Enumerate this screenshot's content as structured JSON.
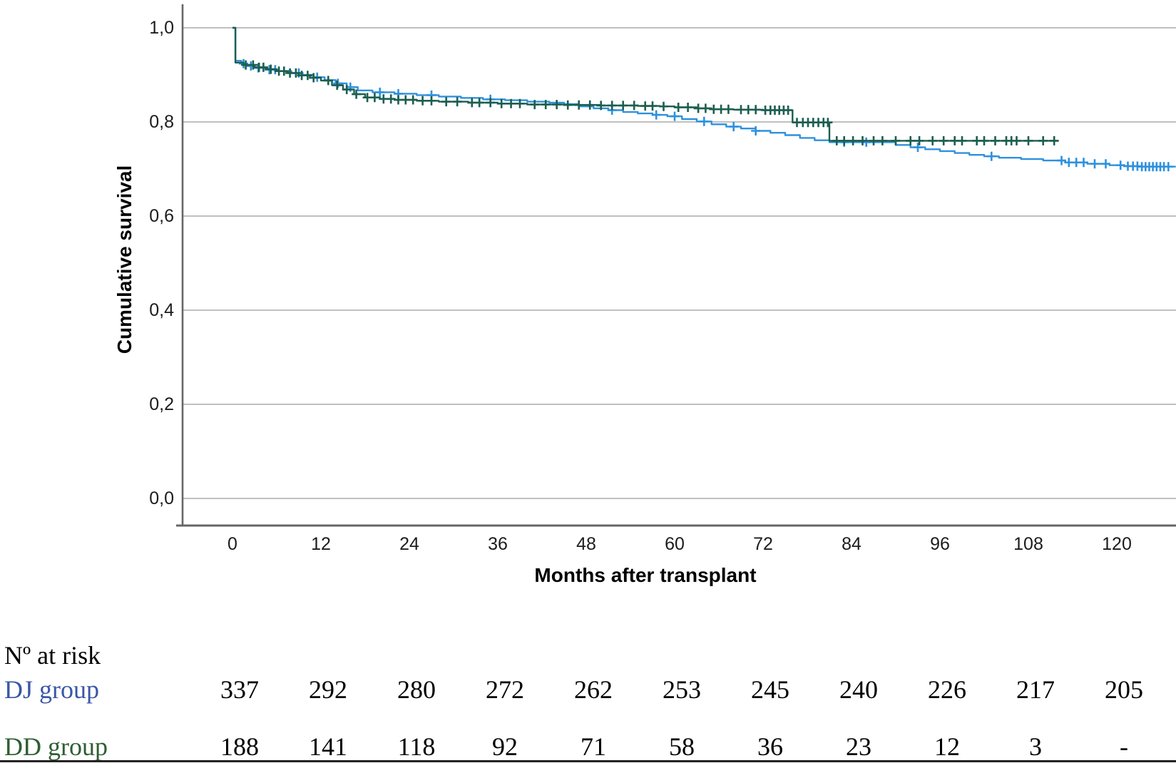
{
  "chart_data": {
    "type": "line",
    "subtype": "kaplan_meier_step_survival",
    "title": "",
    "xlabel": "Months after transplant",
    "ylabel": "Cumulative survival",
    "grid": "horizontal",
    "legend_position": "none",
    "xlim": [
      -7,
      128
    ],
    "ylim": [
      0,
      1.06
    ],
    "x_ticks": [
      {
        "value": 0,
        "label": "0"
      },
      {
        "value": 12,
        "label": "12"
      },
      {
        "value": 24,
        "label": "24"
      },
      {
        "value": 36,
        "label": "36"
      },
      {
        "value": 48,
        "label": "48"
      },
      {
        "value": 60,
        "label": "60"
      },
      {
        "value": 72,
        "label": "72"
      },
      {
        "value": 84,
        "label": "84"
      },
      {
        "value": 96,
        "label": "96"
      },
      {
        "value": 108,
        "label": "108"
      },
      {
        "value": 120,
        "label": "120"
      }
    ],
    "y_ticks": [
      {
        "value": 1.0,
        "label": "1,0"
      },
      {
        "value": 0.8,
        "label": "0,8"
      },
      {
        "value": 0.6,
        "label": "0,6"
      },
      {
        "value": 0.4,
        "label": "0,4"
      },
      {
        "value": 0.2,
        "label": "0,2"
      },
      {
        "value": 0.0,
        "label": "0,0"
      }
    ],
    "colors": {
      "grid": "#ABABAB",
      "axis": "#666666",
      "tick_text": "#1C1C1C"
    },
    "series": [
      {
        "name": "DJ group",
        "color": "#2E91DD",
        "points": [
          [
            0,
            1.0
          ],
          [
            0.4,
            0.93
          ],
          [
            1.2,
            0.924
          ],
          [
            2,
            0.919
          ],
          [
            3,
            0.915
          ],
          [
            4.5,
            0.911
          ],
          [
            6,
            0.908
          ],
          [
            8,
            0.904
          ],
          [
            9.5,
            0.9
          ],
          [
            11,
            0.895
          ],
          [
            12.5,
            0.889
          ],
          [
            14,
            0.882
          ],
          [
            15.5,
            0.874
          ],
          [
            17,
            0.867
          ],
          [
            19,
            0.863
          ],
          [
            22,
            0.86
          ],
          [
            25,
            0.857
          ],
          [
            28,
            0.854
          ],
          [
            31,
            0.851
          ],
          [
            34,
            0.848
          ],
          [
            37,
            0.846
          ],
          [
            40,
            0.843
          ],
          [
            43,
            0.841
          ],
          [
            45,
            0.838
          ],
          [
            47,
            0.833
          ],
          [
            49,
            0.829
          ],
          [
            51,
            0.825
          ],
          [
            53,
            0.821
          ],
          [
            55,
            0.818
          ],
          [
            57,
            0.815
          ],
          [
            59,
            0.812
          ],
          [
            61,
            0.806
          ],
          [
            63,
            0.801
          ],
          [
            65,
            0.795
          ],
          [
            67,
            0.79
          ],
          [
            69,
            0.786
          ],
          [
            71,
            0.781
          ],
          [
            73,
            0.777
          ],
          [
            75,
            0.772
          ],
          [
            77,
            0.766
          ],
          [
            79,
            0.761
          ],
          [
            81,
            0.757
          ],
          [
            90,
            0.751
          ],
          [
            92,
            0.746
          ],
          [
            94,
            0.742
          ],
          [
            96,
            0.738
          ],
          [
            98,
            0.734
          ],
          [
            100,
            0.73
          ],
          [
            102,
            0.727
          ],
          [
            104,
            0.724
          ],
          [
            107,
            0.721
          ],
          [
            110,
            0.718
          ],
          [
            113,
            0.714
          ],
          [
            116,
            0.711
          ],
          [
            119,
            0.708
          ],
          [
            121,
            0.706
          ],
          [
            123,
            0.705
          ],
          [
            128,
            0.705
          ]
        ],
        "censor_months": [
          1.5,
          2.5,
          3.5,
          5,
          5.8,
          9,
          11.5,
          14.3,
          16,
          20,
          22.5,
          27,
          35,
          51.5,
          57.5,
          60,
          64,
          68,
          71,
          83,
          86,
          93,
          103,
          112.5,
          113.5,
          114.5,
          115.5,
          117,
          118.5,
          120.5,
          121.5,
          122.2,
          122.8,
          123.4,
          123.9,
          124.4,
          124.9,
          125.4,
          125.9,
          126.4,
          127
        ]
      },
      {
        "name": "DD group",
        "color": "#1C5E50",
        "points": [
          [
            0,
            1.0
          ],
          [
            0.4,
            0.926
          ],
          [
            1.5,
            0.921
          ],
          [
            3,
            0.916
          ],
          [
            4.5,
            0.912
          ],
          [
            6,
            0.908
          ],
          [
            7.5,
            0.904
          ],
          [
            9,
            0.899
          ],
          [
            10.5,
            0.894
          ],
          [
            12,
            0.888
          ],
          [
            13.5,
            0.878
          ],
          [
            15,
            0.869
          ],
          [
            16.5,
            0.859
          ],
          [
            18,
            0.852
          ],
          [
            20,
            0.849
          ],
          [
            22,
            0.847
          ],
          [
            25,
            0.845
          ],
          [
            28,
            0.843
          ],
          [
            32,
            0.841
          ],
          [
            36,
            0.839
          ],
          [
            40,
            0.837
          ],
          [
            45,
            0.836
          ],
          [
            50,
            0.835
          ],
          [
            55,
            0.834
          ],
          [
            58,
            0.833
          ],
          [
            60,
            0.831
          ],
          [
            63,
            0.829
          ],
          [
            65,
            0.827
          ],
          [
            68,
            0.826
          ],
          [
            72,
            0.825
          ],
          [
            76,
            0.799
          ],
          [
            81,
            0.76
          ],
          [
            112,
            0.76
          ]
        ],
        "censor_months": [
          1.8,
          2.8,
          3.6,
          4.2,
          5.2,
          6.3,
          7,
          7.8,
          8.6,
          9.4,
          10.2,
          11,
          13,
          14.2,
          15.5,
          16.8,
          18.3,
          19.3,
          20.5,
          21.5,
          22.5,
          23.5,
          24.5,
          25.8,
          27,
          29,
          30.5,
          32.5,
          33.5,
          35,
          36.5,
          37.8,
          39,
          41,
          42.5,
          44,
          45.5,
          47,
          48.5,
          50,
          51.5,
          53,
          54.5,
          56,
          57,
          58.5,
          60.5,
          61.8,
          63.2,
          64.2,
          65.3,
          66.3,
          67.3,
          69,
          70,
          71,
          72.3,
          73,
          73.6,
          74.2,
          74.8,
          75.4,
          76.6,
          77.4,
          78.1,
          78.8,
          79.5,
          80.2,
          80.8,
          82,
          83,
          84.2,
          85.5,
          87,
          88.2,
          90,
          92,
          93.2,
          95,
          96.5,
          98,
          99,
          101,
          102,
          103.5,
          105,
          105.7,
          106.4,
          108,
          110,
          111.5
        ]
      }
    ],
    "risk_table": {
      "header": "Nº at risk",
      "columns_months": [
        0,
        12,
        24,
        36,
        48,
        60,
        72,
        84,
        96,
        108,
        120
      ],
      "rows": [
        {
          "label": "DJ group",
          "label_color": "#3A57A8",
          "values": [
            "337",
            "292",
            "280",
            "272",
            "262",
            "253",
            "245",
            "240",
            "226",
            "217",
            "205"
          ]
        },
        {
          "label": "DD group",
          "label_color": "#2F5E33",
          "values": [
            "188",
            "141",
            "118",
            "92",
            "71",
            "58",
            "36",
            "23",
            "12",
            "3",
            "-"
          ]
        }
      ]
    }
  }
}
